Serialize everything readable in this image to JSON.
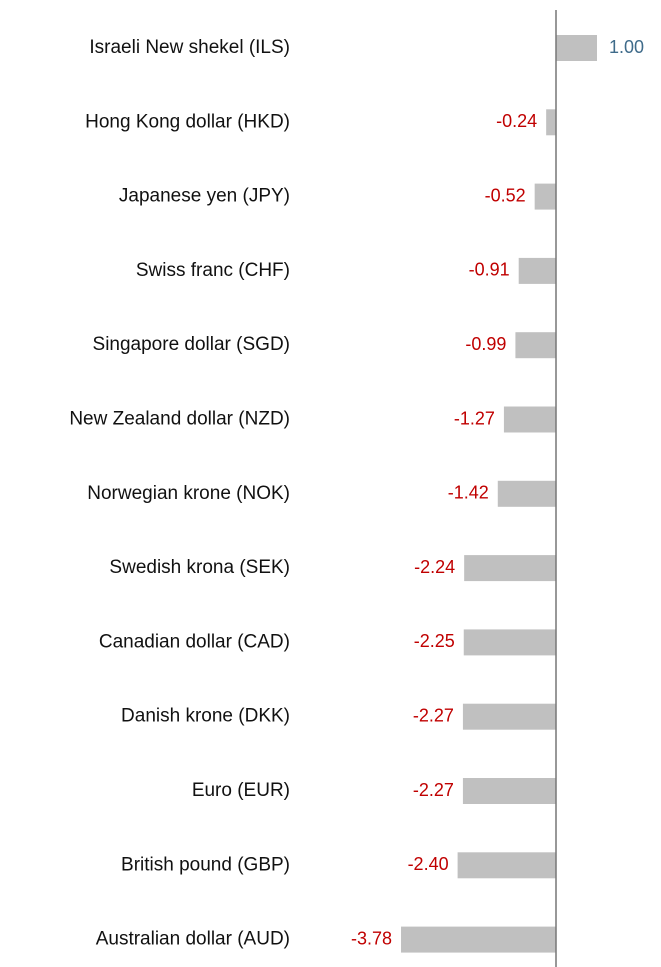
{
  "chart_data": {
    "type": "bar",
    "orientation": "horizontal",
    "categories": [
      "Israeli New shekel (ILS)",
      "Hong Kong dollar (HKD)",
      "Japanese yen (JPY)",
      "Swiss franc (CHF)",
      "Singapore dollar (SGD)",
      "New Zealand dollar (NZD)",
      "Norwegian krone (NOK)",
      "Swedish krona (SEK)",
      "Canadian dollar (CAD)",
      "Danish krone (DKK)",
      "Euro (EUR)",
      "British pound (GBP)",
      "Australian dollar (AUD)"
    ],
    "values": [
      1.0,
      -0.24,
      -0.52,
      -0.91,
      -0.99,
      -1.27,
      -1.42,
      -2.24,
      -2.25,
      -2.27,
      -2.27,
      -2.4,
      -3.78
    ],
    "value_labels": [
      "1.00",
      "-0.24",
      "-0.52",
      "-0.91",
      "-0.99",
      "-1.27",
      "-1.42",
      "-2.24",
      "-2.25",
      "-2.27",
      "-2.27",
      "-2.40",
      "-3.78"
    ],
    "color": "#c0c0c0",
    "positive_label_color": "#3f6b8a",
    "negative_label_color": "#c00000"
  }
}
